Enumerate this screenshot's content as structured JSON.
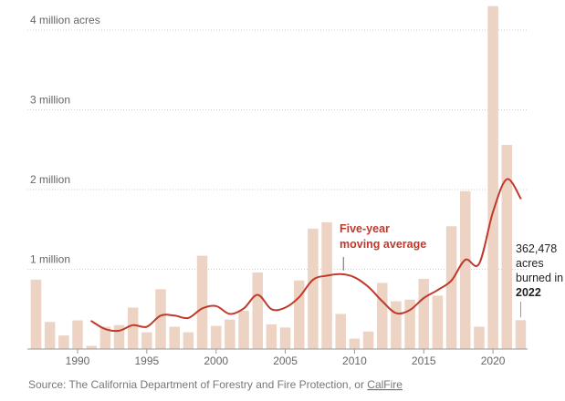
{
  "chart_data": {
    "type": "bar",
    "title": "",
    "xlabel": "",
    "ylabel": "",
    "x_range": [
      1987,
      2022
    ],
    "ylim": [
      0,
      4300000
    ],
    "grid": true,
    "y_ticks": [
      {
        "value": 1000000,
        "label": "1 million"
      },
      {
        "value": 2000000,
        "label": "2 million"
      },
      {
        "value": 3000000,
        "label": "3 million"
      },
      {
        "value": 4000000,
        "label": "4 million acres"
      }
    ],
    "x_ticks": [
      {
        "value": 1990,
        "label": "1990"
      },
      {
        "value": 1995,
        "label": "1995"
      },
      {
        "value": 2000,
        "label": "2000"
      },
      {
        "value": 2005,
        "label": "2005"
      },
      {
        "value": 2010,
        "label": "2010"
      },
      {
        "value": 2015,
        "label": "2015"
      },
      {
        "value": 2020,
        "label": "2020"
      }
    ],
    "bar_series": {
      "color": "#ecd3c3",
      "x": [
        1987,
        1988,
        1989,
        1990,
        1991,
        1992,
        1993,
        1994,
        1995,
        1996,
        1997,
        1998,
        1999,
        2000,
        2001,
        2002,
        2003,
        2004,
        2005,
        2006,
        2007,
        2008,
        2009,
        2010,
        2011,
        2012,
        2013,
        2014,
        2015,
        2016,
        2017,
        2018,
        2019,
        2020,
        2021,
        2022
      ],
      "values": [
        870000,
        340000,
        170000,
        360000,
        40000,
        280000,
        300000,
        520000,
        210000,
        750000,
        280000,
        210000,
        1170000,
        290000,
        370000,
        480000,
        960000,
        310000,
        270000,
        860000,
        1510000,
        1590000,
        440000,
        130000,
        220000,
        830000,
        600000,
        620000,
        880000,
        670000,
        1540000,
        1980000,
        280000,
        4300000,
        2560000,
        362478
      ]
    },
    "line_series": {
      "name": "Five-year moving average",
      "color": "#c0392b",
      "x": [
        1991,
        1992,
        1993,
        1994,
        1995,
        1996,
        1997,
        1998,
        1999,
        2000,
        2001,
        2002,
        2003,
        2004,
        2005,
        2006,
        2007,
        2008,
        2009,
        2010,
        2011,
        2012,
        2013,
        2014,
        2015,
        2016,
        2017,
        2018,
        2019,
        2020,
        2021,
        2022
      ],
      "values": [
        350000,
        250000,
        230000,
        300000,
        280000,
        420000,
        420000,
        390000,
        510000,
        540000,
        440000,
        510000,
        680000,
        500000,
        520000,
        650000,
        870000,
        920000,
        940000,
        900000,
        780000,
        600000,
        450000,
        490000,
        640000,
        740000,
        860000,
        1120000,
        1070000,
        1720000,
        2130000,
        1890000
      ]
    },
    "annotations": [
      {
        "lines": [
          "Five-year",
          "moving average"
        ],
        "target_year": 2009
      },
      {
        "lines": [
          "362,478",
          "acres",
          "burned in",
          "2022"
        ],
        "target_year": 2022
      }
    ]
  },
  "source": {
    "prefix": "Source: The California Department of Forestry and Fire Protection, or ",
    "link": "CalFire"
  }
}
